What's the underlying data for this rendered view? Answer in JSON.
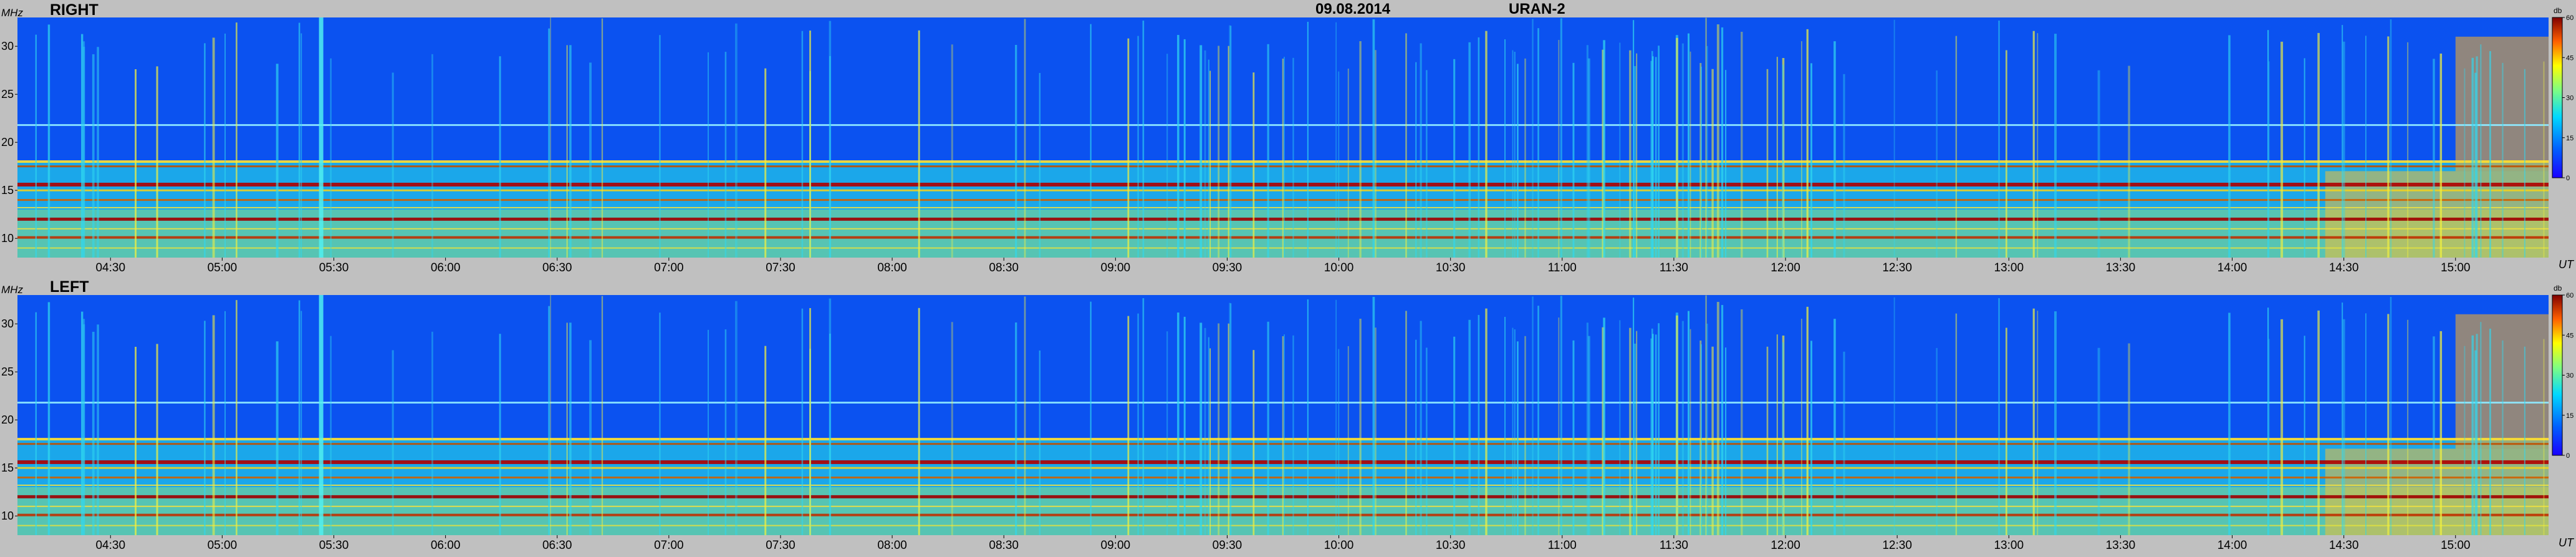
{
  "header": {
    "date": "09.08.2014",
    "instrument": "URAN-2"
  },
  "chart_data": [
    {
      "type": "heatmap",
      "title": "RIGHT",
      "ylabel": "MHz",
      "xlabel": "UT",
      "ylim": [
        8,
        33
      ],
      "xlim": [
        "04:05",
        "15:25"
      ],
      "y_ticks": [
        "10",
        "15",
        "20",
        "25",
        "30"
      ],
      "x_ticks": [
        "04:30",
        "05:00",
        "05:30",
        "06:00",
        "06:30",
        "07:00",
        "07:30",
        "08:00",
        "08:30",
        "09:00",
        "09:30",
        "10:00",
        "10:30",
        "11:00",
        "11:30",
        "12:00",
        "12:30",
        "13:00",
        "13:30",
        "14:00",
        "14:30",
        "15:00"
      ],
      "colorbar": {
        "unit": "db",
        "range": [
          0,
          60
        ],
        "ticks": [
          "0",
          "15",
          "30",
          "45",
          "60"
        ]
      }
    },
    {
      "type": "heatmap",
      "title": "LEFT",
      "ylabel": "MHz",
      "xlabel": "UT",
      "ylim": [
        8,
        33
      ],
      "xlim": [
        "04:05",
        "15:25"
      ],
      "y_ticks": [
        "10",
        "15",
        "20",
        "25",
        "30"
      ],
      "x_ticks": [
        "04:30",
        "05:00",
        "05:30",
        "06:00",
        "06:30",
        "07:00",
        "07:30",
        "08:00",
        "08:30",
        "09:00",
        "09:30",
        "10:00",
        "10:30",
        "11:00",
        "11:30",
        "12:00",
        "12:30",
        "13:00",
        "13:30",
        "14:00",
        "14:30",
        "15:00"
      ],
      "colorbar": {
        "unit": "db",
        "range": [
          0,
          60
        ],
        "ticks": [
          "0",
          "15",
          "30",
          "45",
          "60"
        ]
      }
    }
  ],
  "colors": {
    "background": "#c0c0c0",
    "low": "#0a3cf0",
    "mid": "#22d8ee",
    "high": "#f0e020",
    "peak": "#b00000"
  }
}
